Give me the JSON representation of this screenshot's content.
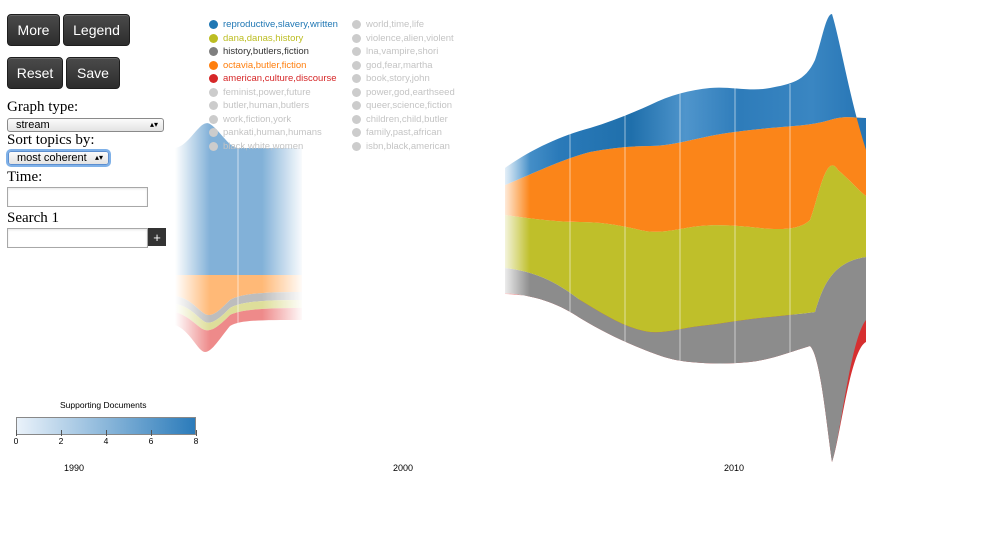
{
  "buttons": {
    "more": "More",
    "legend": "Legend",
    "reset": "Reset",
    "save": "Save"
  },
  "controls": {
    "graph_type_label": "Graph type:",
    "graph_type_value": "stream",
    "sort_label": "Sort topics by:",
    "sort_value": "most coherent",
    "time_label": "Time:",
    "time_value": "",
    "search_label": "Search 1",
    "search_value": "",
    "add_search": "+"
  },
  "legend": {
    "active": [
      {
        "label": "reproductive,slavery,written",
        "color": "#1f77b4"
      },
      {
        "label": "dana,danas,history",
        "color": "#bcbd22"
      },
      {
        "label": "history,butlers,fiction",
        "color": "#7f7f7f"
      },
      {
        "label": "octavia,butler,fiction",
        "color": "#ff7f0e"
      },
      {
        "label": "american,culture,discourse",
        "color": "#d62728"
      }
    ],
    "inactive_left": [
      "feminist,power,future",
      "butler,human,butlers",
      "work,fiction,york",
      "pankati,human,humans",
      "black,white,women"
    ],
    "inactive_right": [
      "world,time,life",
      "violence,alien,violent",
      "lna,vampire,shori",
      "god,fear,martha",
      "book,story,john",
      "power,god,earthseed",
      "queer,science,fiction",
      "children,child,butler",
      "family,past,african",
      "isbn,black,american"
    ],
    "inactive_color": "#cccccc"
  },
  "scale": {
    "title": "Supporting Documents",
    "ticks": [
      "0",
      "2",
      "4",
      "6",
      "8"
    ],
    "low_color": "#eaf2fa",
    "high_color": "#2b7bba"
  },
  "axis": {
    "years": [
      "1990",
      "2000",
      "2010"
    ]
  }
}
